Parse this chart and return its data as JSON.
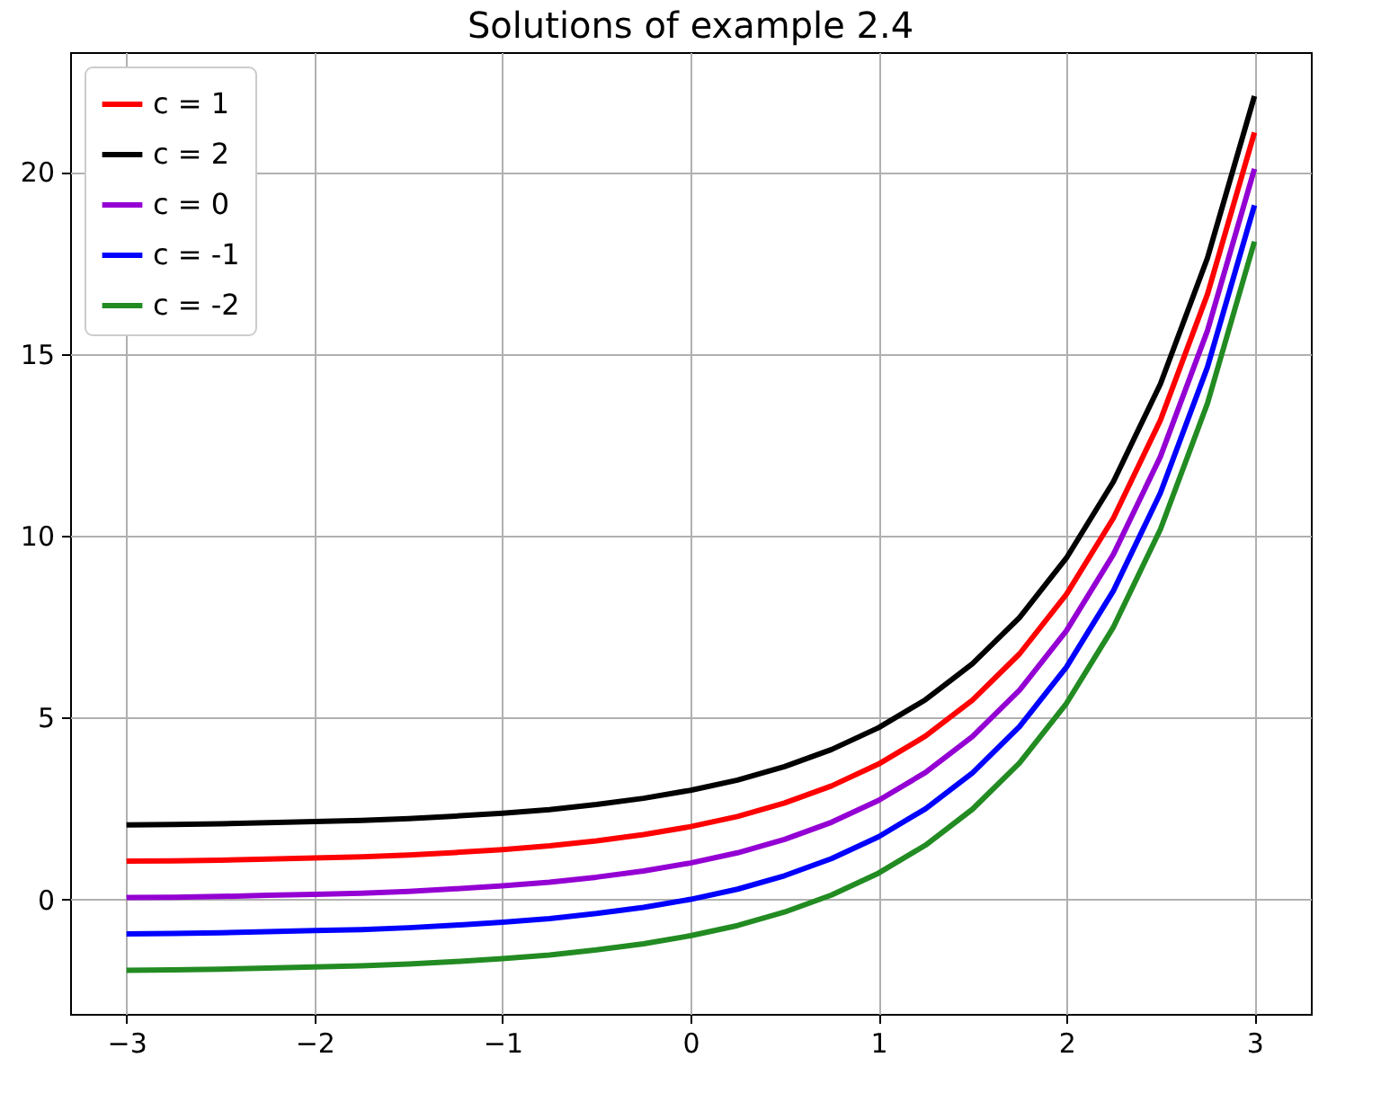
{
  "chart_data": {
    "type": "line",
    "title": "Solutions of example 2.4",
    "x": [
      -3,
      -2.75,
      -2.5,
      -2.25,
      -2,
      -1.75,
      -1.5,
      -1.25,
      -1,
      -0.75,
      -0.5,
      -0.25,
      0,
      0.25,
      0.5,
      0.75,
      1,
      1.25,
      1.5,
      1.75,
      2,
      2.25,
      2.5,
      2.75,
      3
    ],
    "series": [
      {
        "name": "c = 1",
        "color": "#ff0000",
        "values": [
          1.05,
          1.06,
          1.08,
          1.11,
          1.14,
          1.17,
          1.22,
          1.29,
          1.37,
          1.47,
          1.61,
          1.78,
          2,
          2.28,
          2.65,
          3.12,
          3.72,
          4.49,
          5.48,
          6.75,
          8.39,
          10.49,
          13.18,
          16.64,
          21.09
        ]
      },
      {
        "name": "c = 2",
        "color": "#000000",
        "values": [
          2.05,
          2.06,
          2.08,
          2.11,
          2.14,
          2.17,
          2.22,
          2.29,
          2.37,
          2.47,
          2.61,
          2.78,
          3,
          3.28,
          3.65,
          4.12,
          4.72,
          5.49,
          6.48,
          7.75,
          9.39,
          11.49,
          14.18,
          17.64,
          22.09
        ]
      },
      {
        "name": "c = 0",
        "color": "#9400d3",
        "values": [
          0.05,
          0.06,
          0.08,
          0.11,
          0.14,
          0.17,
          0.22,
          0.29,
          0.37,
          0.47,
          0.61,
          0.78,
          1,
          1.28,
          1.65,
          2.12,
          2.72,
          3.49,
          4.48,
          5.75,
          7.39,
          9.49,
          12.18,
          15.64,
          20.09
        ]
      },
      {
        "name": "c = -1",
        "color": "#0000ff",
        "values": [
          -0.95,
          -0.94,
          -0.92,
          -0.89,
          -0.86,
          -0.83,
          -0.78,
          -0.71,
          -0.63,
          -0.53,
          -0.39,
          -0.22,
          0,
          0.28,
          0.65,
          1.12,
          1.72,
          2.49,
          3.48,
          4.75,
          6.39,
          8.49,
          11.18,
          14.64,
          19.09
        ]
      },
      {
        "name": "c = -2",
        "color": "#228b22",
        "values": [
          -1.95,
          -1.94,
          -1.92,
          -1.89,
          -1.86,
          -1.83,
          -1.78,
          -1.71,
          -1.63,
          -1.53,
          -1.39,
          -1.22,
          -1,
          -0.72,
          -0.35,
          0.12,
          0.72,
          1.49,
          2.48,
          3.75,
          5.39,
          7.49,
          10.18,
          13.64,
          18.09
        ]
      }
    ],
    "xlim": [
      -3.3,
      3.3
    ],
    "xticks": [
      -3,
      -2,
      -1,
      0,
      1,
      2,
      3
    ],
    "ylim": [
      -3.15,
      23.3
    ],
    "yticks": [
      0,
      5,
      10,
      15,
      20
    ],
    "grid": true,
    "legend": "top left",
    "marker": "none",
    "line_style": "solid"
  }
}
